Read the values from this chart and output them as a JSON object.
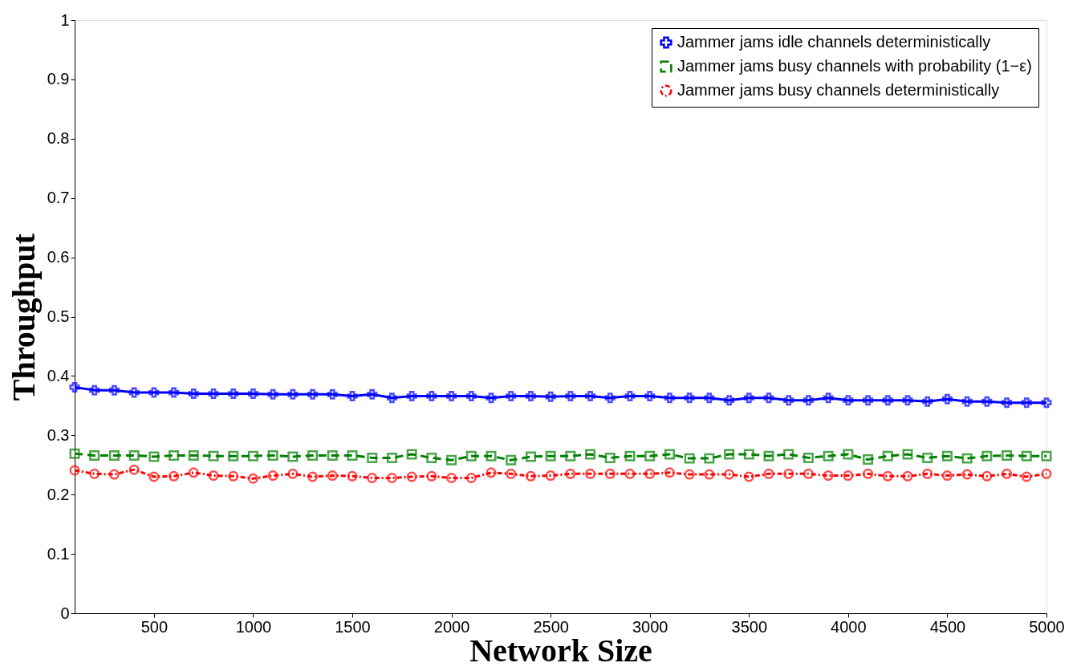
{
  "chart_data": {
    "type": "line",
    "xlabel": "Network Size",
    "ylabel": "Throughput",
    "x": [
      100,
      200,
      300,
      400,
      500,
      600,
      700,
      800,
      900,
      1000,
      1100,
      1200,
      1300,
      1400,
      1500,
      1600,
      1700,
      1800,
      1900,
      2000,
      2100,
      2200,
      2300,
      2400,
      2500,
      2600,
      2700,
      2800,
      2900,
      3000,
      3100,
      3200,
      3300,
      3400,
      3500,
      3600,
      3700,
      3800,
      3900,
      4000,
      4100,
      4200,
      4300,
      4400,
      4500,
      4600,
      4700,
      4800,
      4900,
      5000
    ],
    "series": [
      {
        "name": "Jammer jams idle channels deterministically",
        "color": "#0000ff",
        "marker": "cross",
        "line_style": "solid",
        "values": [
          0.381,
          0.376,
          0.376,
          0.372,
          0.372,
          0.372,
          0.37,
          0.37,
          0.37,
          0.37,
          0.369,
          0.369,
          0.369,
          0.369,
          0.366,
          0.369,
          0.363,
          0.366,
          0.366,
          0.366,
          0.366,
          0.363,
          0.366,
          0.366,
          0.365,
          0.366,
          0.366,
          0.363,
          0.366,
          0.366,
          0.363,
          0.363,
          0.363,
          0.359,
          0.363,
          0.363,
          0.359,
          0.359,
          0.363,
          0.359,
          0.359,
          0.359,
          0.359,
          0.357,
          0.361,
          0.357,
          0.357,
          0.355,
          0.355,
          0.355
        ]
      },
      {
        "name": "Jammer jams busy channels with probability (1−ε)",
        "color": "#008000",
        "marker": "square",
        "line_style": "dashed",
        "values": [
          0.269,
          0.266,
          0.266,
          0.266,
          0.264,
          0.266,
          0.266,
          0.265,
          0.265,
          0.265,
          0.266,
          0.264,
          0.266,
          0.266,
          0.266,
          0.262,
          0.262,
          0.268,
          0.262,
          0.258,
          0.265,
          0.265,
          0.258,
          0.264,
          0.265,
          0.265,
          0.268,
          0.262,
          0.265,
          0.265,
          0.268,
          0.261,
          0.261,
          0.268,
          0.268,
          0.265,
          0.268,
          0.262,
          0.265,
          0.268,
          0.259,
          0.265,
          0.268,
          0.262,
          0.265,
          0.261,
          0.265,
          0.266,
          0.265,
          0.265
        ]
      },
      {
        "name": "Jammer jams busy channels deterministically",
        "color": "#ff0000",
        "marker": "circle",
        "line_style": "dotted",
        "values": [
          0.241,
          0.235,
          0.234,
          0.242,
          0.23,
          0.231,
          0.237,
          0.232,
          0.231,
          0.227,
          0.232,
          0.235,
          0.23,
          0.232,
          0.231,
          0.228,
          0.228,
          0.23,
          0.231,
          0.228,
          0.228,
          0.237,
          0.235,
          0.231,
          0.232,
          0.235,
          0.235,
          0.235,
          0.235,
          0.235,
          0.237,
          0.234,
          0.234,
          0.234,
          0.23,
          0.235,
          0.235,
          0.235,
          0.232,
          0.232,
          0.235,
          0.231,
          0.231,
          0.235,
          0.232,
          0.234,
          0.231,
          0.235,
          0.23,
          0.235
        ]
      }
    ],
    "xlim": [
      100,
      5000
    ],
    "xticks": [
      500,
      1000,
      1500,
      2000,
      2500,
      3000,
      3500,
      4000,
      4500,
      5000
    ],
    "ylim": [
      0,
      1
    ],
    "yticks": [
      0,
      0.1,
      0.2,
      0.3,
      0.4,
      0.5,
      0.6,
      0.7,
      0.8,
      0.9,
      1
    ],
    "grid": false,
    "legend": "top right"
  }
}
